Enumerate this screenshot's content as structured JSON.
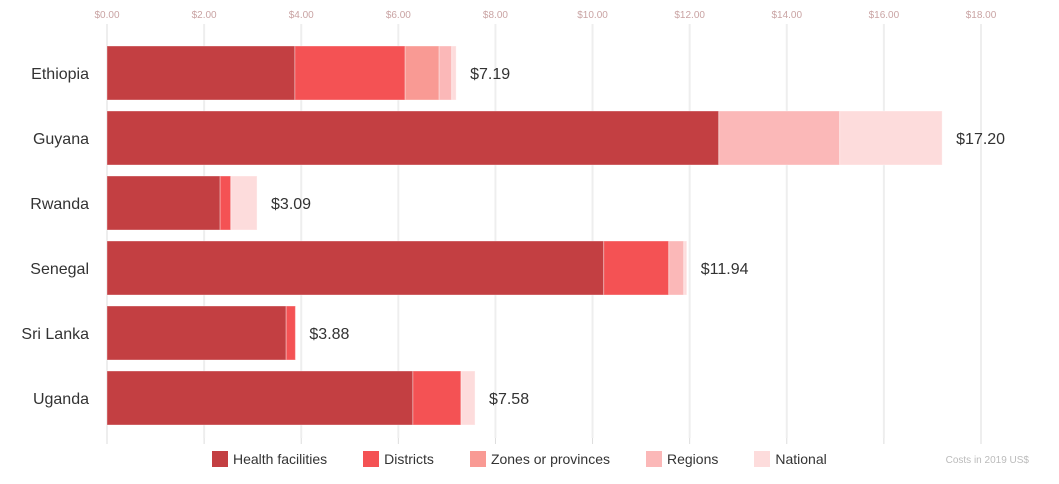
{
  "chart_data": {
    "type": "bar",
    "orientation": "horizontal",
    "stacked": true,
    "categories": [
      "Ethiopia",
      "Guyana",
      "Rwanda",
      "Senegal",
      "Sri Lanka",
      "Uganda"
    ],
    "series": [
      {
        "name": "Health facilities",
        "color": "#c33f42",
        "values": [
          3.87,
          12.6,
          2.33,
          10.23,
          3.69,
          6.3
        ]
      },
      {
        "name": "Districts",
        "color": "#f45254",
        "values": [
          2.27,
          0,
          0.22,
          1.34,
          0.19,
          0.99
        ]
      },
      {
        "name": "Zones or provinces",
        "color": "#f99a94",
        "values": [
          0.7,
          0,
          0,
          0,
          0,
          0
        ]
      },
      {
        "name": "Regions",
        "color": "#fbb8b8",
        "values": [
          0.26,
          2.49,
          0,
          0.31,
          0,
          0
        ]
      },
      {
        "name": "National",
        "color": "#fddcdc",
        "values": [
          0.09,
          2.11,
          0.54,
          0.06,
          0,
          0.29
        ]
      }
    ],
    "totals": [
      "$7.19",
      "$17.20",
      "$3.09",
      "$11.94",
      "$3.88",
      "$7.58"
    ],
    "xticks": [
      "$0.00",
      "$2.00",
      "$4.00",
      "$6.00",
      "$8.00",
      "$10.00",
      "$12.00",
      "$14.00",
      "$16.00",
      "$18.00"
    ],
    "xlim": [
      0,
      18
    ],
    "grid": true,
    "legend": "bottom",
    "note": "Costs in 2019 US$"
  }
}
